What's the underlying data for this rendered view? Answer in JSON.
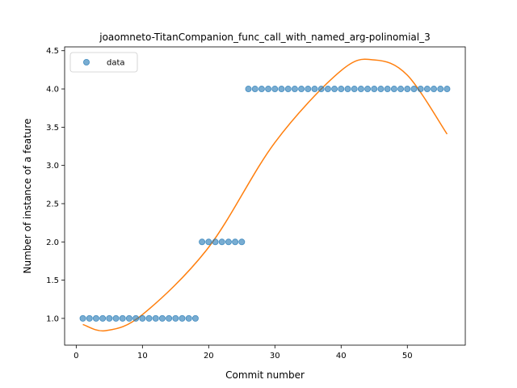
{
  "chart_data": {
    "type": "scatter",
    "title": "joaomneto-TitanCompanion_func_call_with_named_arg-polinomial_3",
    "xlabel": "Commit number",
    "ylabel": "Number of instance of a feature",
    "xlim": [
      -1.75,
      58.75
    ],
    "ylim": [
      0.65,
      4.55
    ],
    "x_ticks": [
      0,
      10,
      20,
      30,
      40,
      50
    ],
    "y_ticks": [
      1.0,
      1.5,
      2.0,
      2.5,
      3.0,
      3.5,
      4.0,
      4.5
    ],
    "grid": false,
    "legend_position": "top-left",
    "series": [
      {
        "name": "data",
        "kind": "points",
        "color": "#1f77b4",
        "x": [
          1,
          2,
          3,
          4,
          5,
          6,
          7,
          8,
          9,
          10,
          11,
          12,
          13,
          14,
          15,
          16,
          17,
          18,
          19,
          20,
          21,
          22,
          23,
          24,
          25,
          26,
          27,
          28,
          29,
          30,
          31,
          32,
          33,
          34,
          35,
          36,
          37,
          38,
          39,
          40,
          41,
          42,
          43,
          44,
          45,
          46,
          47,
          48,
          49,
          50,
          51,
          52,
          53,
          54,
          55,
          56
        ],
        "y": [
          1,
          1,
          1,
          1,
          1,
          1,
          1,
          1,
          1,
          1,
          1,
          1,
          1,
          1,
          1,
          1,
          1,
          1,
          2,
          2,
          2,
          2,
          2,
          2,
          2,
          4,
          4,
          4,
          4,
          4,
          4,
          4,
          4,
          4,
          4,
          4,
          4,
          4,
          4,
          4,
          4,
          4,
          4,
          4,
          4,
          4,
          4,
          4,
          4,
          4,
          4,
          4,
          4,
          4,
          4,
          4
        ]
      },
      {
        "kind": "fit-line",
        "color": "#ff7f0e",
        "x": [
          1,
          4.5,
          10,
          20,
          30,
          40,
          45,
          50,
          56
        ],
        "y": [
          0.92,
          0.84,
          1.05,
          1.93,
          3.3,
          4.24,
          4.38,
          4.18,
          3.41
        ]
      }
    ]
  }
}
